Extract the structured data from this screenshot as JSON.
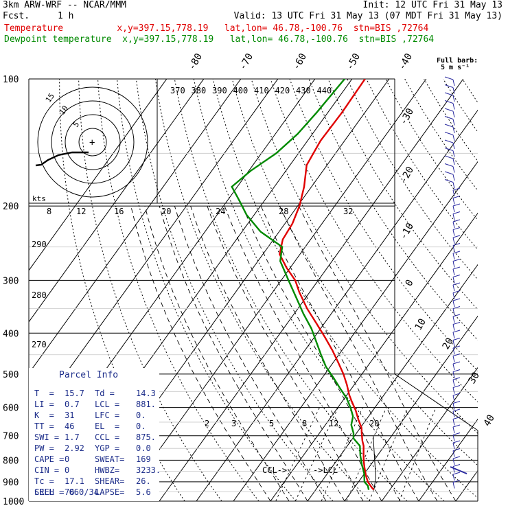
{
  "header": {
    "model": "3km ARW-WRF -- NCAR/MMM",
    "fcst_label": "Fcst.",
    "fcst_value": "1 h",
    "init": "Init: 12 UTC Fri 31 May 13",
    "valid": "Valid: 13 UTC Fri 31 May 13 (07 MDT Fri 31 May 13)",
    "temp_line": "Temperature          x,y=397.15,778.19   lat,lon= 46.78,-100.76  stn=BIS ,72764",
    "dew_line": "Dewpoint temperature  x,y=397.15,778.19   lat,lon= 46.78,-100.76  stn=BIS ,72764",
    "colors": {
      "temperature": "#e00000",
      "dewpoint": "#008a00",
      "parcel": "#000000",
      "info": "#1c2d8a"
    }
  },
  "wind_key": {
    "title": "Full barb:",
    "value": "5 m s⁻¹"
  },
  "chart_data": {
    "type": "skew-t",
    "pressure_levels": [
      "100",
      "200",
      "300",
      "400",
      "500",
      "600",
      "700",
      "800",
      "900",
      "1000"
    ],
    "isotherm_labels": [
      "-80",
      "-70",
      "-60",
      "-50",
      "-40",
      "-30",
      "-20",
      "-10",
      "0",
      "10",
      "20",
      "30",
      "40"
    ],
    "theta_e_labels": [
      "370",
      "380",
      "390",
      "400",
      "410",
      "420",
      "430",
      "440"
    ],
    "dry_adiabat_labels": [
      "290",
      "280",
      "270"
    ],
    "mixing_ratio_labels": [
      "2",
      "3",
      "5",
      "8",
      "12",
      "20"
    ],
    "hodo_speed_labels": [
      "8",
      "12",
      "16",
      "20",
      "24",
      "28",
      "32"
    ],
    "hodo_unit": "kts",
    "hodo_ring_labels": [
      "15",
      "10",
      "5"
    ],
    "lcl_label": "->LCL",
    "ccl_label": "CCL->",
    "temperature": {
      "p": [
        940,
        930,
        900,
        870,
        830,
        800,
        770,
        740,
        720,
        690,
        670,
        640,
        610,
        580,
        560,
        530,
        500,
        470,
        440,
        410,
        380,
        350,
        320,
        300,
        280,
        260,
        240,
        220,
        200,
        180,
        160,
        140,
        120,
        100
      ],
      "t": [
        15.7,
        14.8,
        12.5,
        10.8,
        8.7,
        7.2,
        5.8,
        4.4,
        3.1,
        1.4,
        0.3,
        -2.2,
        -4.6,
        -7.5,
        -9.4,
        -12.0,
        -15.0,
        -18.6,
        -22.5,
        -27.0,
        -32.0,
        -37.5,
        -42.8,
        -46.2,
        -51.0,
        -55.5,
        -57.5,
        -58.0,
        -59.5,
        -62.0,
        -65.5,
        -66.5,
        -66.2,
        -66.5
      ]
    },
    "dewpoint": {
      "p": [
        940,
        920,
        900,
        860,
        820,
        780,
        740,
        710,
        690,
        660,
        630,
        600,
        570,
        540,
        510,
        480,
        450,
        420,
        390,
        360,
        330,
        300,
        270,
        250,
        230,
        210,
        195,
        180,
        165,
        150,
        135,
        120,
        100
      ],
      "t": [
        14.3,
        13.3,
        11.6,
        9.9,
        7.6,
        5.4,
        3.4,
        0.2,
        -0.8,
        -3.0,
        -4.2,
        -6.6,
        -9.5,
        -13.2,
        -17.0,
        -21.2,
        -24.8,
        -28.5,
        -32.5,
        -37.5,
        -42.5,
        -48.0,
        -54.0,
        -56.2,
        -65.0,
        -72.0,
        -76.5,
        -81.5,
        -79.5,
        -76.0,
        -74.0,
        -73.0,
        -72.0
      ]
    },
    "winds_note": "wind barbs along right edge, speeds in m s-1",
    "hodograph_trace": [
      [
        0,
        -6
      ],
      [
        -3,
        -3
      ],
      [
        -5,
        -1
      ],
      [
        -8,
        0
      ],
      [
        -10,
        2
      ],
      [
        -12,
        4
      ],
      [
        -13,
        6
      ],
      [
        -14,
        7
      ]
    ],
    "hodograph_center_marker": "+"
  },
  "parcel_info": {
    "title": "Parcel Info",
    "rows": [
      [
        "T  =",
        "15.7",
        "Td =",
        "14.3"
      ],
      [
        "LI =",
        "0.7",
        "LCL =",
        "881."
      ],
      [
        "K  =",
        "31",
        "LFC =",
        "0."
      ],
      [
        "TT =",
        "46",
        "EL  =",
        "0."
      ],
      [
        "SWI =",
        "1.7",
        "CCL =",
        "875."
      ],
      [
        "PW =",
        "2.92",
        "YGP =",
        "0.0"
      ],
      [
        "CAPE =",
        "0",
        "SWEAT=",
        "169"
      ],
      [
        "CIN =",
        "0",
        "HWBZ=",
        "3233."
      ],
      [
        "Tc =",
        "17.1",
        "SHEAR=",
        "26."
      ],
      [
        "SREH =",
        "76",
        "LAPSE=",
        "5.6"
      ]
    ],
    "cell": "CELL = 060/34"
  }
}
